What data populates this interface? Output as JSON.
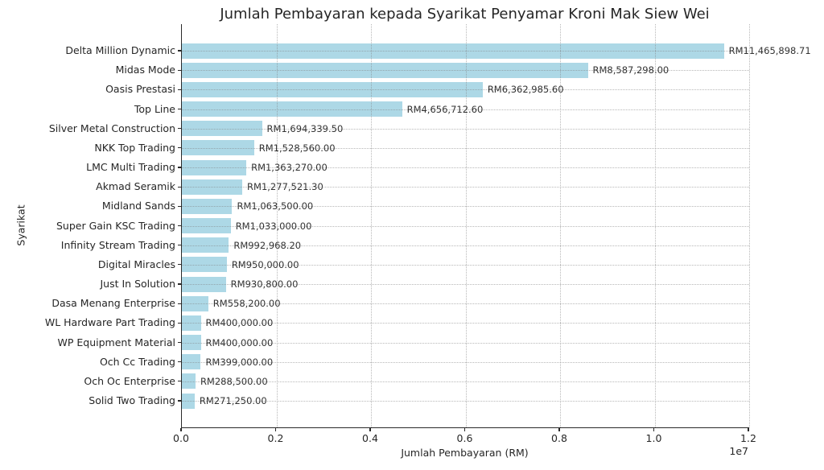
{
  "chart_data": {
    "type": "bar",
    "orientation": "horizontal",
    "title": "Jumlah Pembayaran kepada Syarikat Penyamar Kroni Mak Siew Wei",
    "xlabel": "Jumlah Pembayaran (RM)",
    "ylabel": "Syarikat",
    "x_offset_text": "1e7",
    "xlim": [
      0,
      12000000
    ],
    "x_ticks": [
      0,
      2000000,
      4000000,
      6000000,
      8000000,
      10000000,
      12000000
    ],
    "x_tick_labels": [
      "0.0",
      "0.2",
      "0.4",
      "0.6",
      "0.8",
      "1.0",
      "1.2"
    ],
    "grid": "dotted-both-axes",
    "legend": "none",
    "bar_color": "#ADD8E6",
    "text_color": "#262626",
    "spine_color": "#2a2a2a",
    "categories": [
      "Delta Million Dynamic",
      "Midas Mode",
      "Oasis Prestasi",
      "Top Line",
      "Silver Metal Construction",
      "NKK Top Trading",
      "LMC Multi Trading",
      "Akmad Seramik",
      "Midland Sands",
      "Super Gain KSC Trading",
      "Infinity Stream Trading",
      "Digital Miracles",
      "Just In Solution",
      "Dasa Menang Enterprise",
      "WL Hardware Part Trading",
      "WP Equipment Material",
      "Och Cc Trading",
      "Och Oc Enterprise",
      "Solid Two Trading"
    ],
    "values": [
      11465898.71,
      8587298.0,
      6362985.6,
      4656712.6,
      1694339.5,
      1528560.0,
      1363270.0,
      1277521.3,
      1063500.0,
      1033000.0,
      992968.2,
      950000.0,
      930800.0,
      558200.0,
      400000.0,
      400000.0,
      399000.0,
      288500.0,
      271250.0
    ],
    "value_labels": [
      "RM11,465,898.71",
      "RM8,587,298.00",
      "RM6,362,985.60",
      "RM4,656,712.60",
      "RM1,694,339.50",
      "RM1,528,560.00",
      "RM1,363,270.00",
      "RM1,277,521.30",
      "RM1,063,500.00",
      "RM1,033,000.00",
      "RM992,968.20",
      "RM950,000.00",
      "RM930,800.00",
      "RM558,200.00",
      "RM400,000.00",
      "RM400,000.00",
      "RM399,000.00",
      "RM288,500.00",
      "RM271,250.00"
    ]
  }
}
